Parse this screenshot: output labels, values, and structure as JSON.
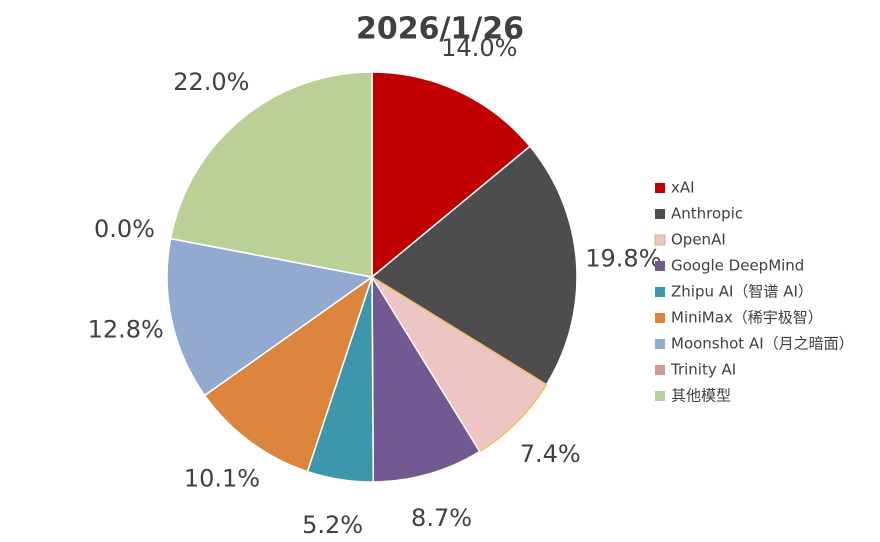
{
  "chart_data": {
    "type": "pie",
    "title": "2026/1/26",
    "categories": [
      "xAI",
      "Anthropic",
      "OpenAI",
      "Google DeepMind",
      "Zhipu AI（智谱 AI）",
      "MiniMax（稀宇极智）",
      "Moonshot AI（月之暗面）",
      "Trinity AI",
      "其他模型"
    ],
    "values": [
      14.0,
      19.8,
      7.4,
      8.7,
      5.2,
      10.1,
      12.8,
      0.0,
      22.0
    ],
    "value_labels": [
      "14.0%",
      "19.8%",
      "7.4%",
      "8.7%",
      "5.2%",
      "10.1%",
      "12.8%",
      "0.0%",
      "22.0%"
    ],
    "colors": [
      "#c00000",
      "#4d4d4f",
      "#ecc5c4",
      "#735992",
      "#3d97aa",
      "#db853f",
      "#93aad0",
      "#d99694",
      "#bbd097"
    ],
    "legend": "right"
  }
}
